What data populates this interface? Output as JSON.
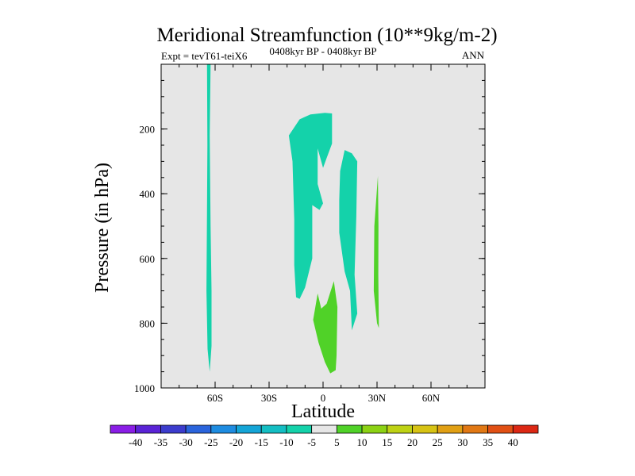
{
  "chart_data": {
    "type": "contour",
    "title": "Meridional Streamfunction (10**9kg/m-2)",
    "left_string": "Expt = tevT61-teiX6",
    "center_string": "0408kyr BP - 0408kyr BP",
    "right_string": "ANN",
    "xlabel": "Latitude",
    "ylabel": "Pressure (in hPa)",
    "xlim": [
      -90,
      90
    ],
    "ylim": [
      1000,
      0
    ],
    "x_ticks": [
      {
        "value": -60,
        "label": "60S"
      },
      {
        "value": -30,
        "label": "30S"
      },
      {
        "value": 0,
        "label": "0"
      },
      {
        "value": 30,
        "label": "30N"
      },
      {
        "value": 60,
        "label": "60N"
      }
    ],
    "y_ticks": [
      {
        "value": 200,
        "label": "200"
      },
      {
        "value": 400,
        "label": "400"
      },
      {
        "value": 600,
        "label": "600"
      },
      {
        "value": 800,
        "label": "800"
      },
      {
        "value": 1000,
        "label": "1000"
      }
    ],
    "background_color": "#e6e6e6",
    "colorbar": {
      "labels": [
        "-40",
        "-35",
        "-30",
        "-25",
        "-20",
        "-15",
        "-10",
        "-5",
        "5",
        "10",
        "15",
        "20",
        "25",
        "30",
        "35",
        "40"
      ],
      "colors": [
        "#8a1ee6",
        "#5a23d6",
        "#3c3ccd",
        "#2a64dc",
        "#1e8ce1",
        "#14a5d7",
        "#14bec3",
        "#14d2aa",
        "#e6e6e6",
        "#50d228",
        "#8cd214",
        "#bed214",
        "#d7c314",
        "#e1a014",
        "#e17814",
        "#e15014",
        "#dc2814"
      ]
    },
    "regions": [
      {
        "name": "southern-polar-column",
        "color": "#14d2aa",
        "points": [
          [
            -64.5,
            0
          ],
          [
            -62.5,
            0
          ],
          [
            -63,
            220
          ],
          [
            -62.5,
            500
          ],
          [
            -62,
            700
          ],
          [
            -62,
            870
          ],
          [
            -63,
            950
          ],
          [
            -64.2,
            880
          ],
          [
            -64.8,
            700
          ],
          [
            -64.5,
            450
          ],
          [
            -64.3,
            250
          ]
        ]
      },
      {
        "name": "tropical-south-cell",
        "color": "#14d2aa",
        "points": [
          [
            -19,
            220
          ],
          [
            -13,
            170
          ],
          [
            -7,
            155
          ],
          [
            1,
            150
          ],
          [
            5,
            152
          ],
          [
            5,
            245
          ],
          [
            2,
            290
          ],
          [
            0,
            320
          ],
          [
            -3,
            260
          ],
          [
            -3,
            370
          ],
          [
            0,
            430
          ],
          [
            -2,
            450
          ],
          [
            -6,
            435
          ],
          [
            -6,
            600
          ],
          [
            -10,
            690
          ],
          [
            -13,
            725
          ],
          [
            -15,
            720
          ],
          [
            -16,
            620
          ],
          [
            -16,
            480
          ],
          [
            -17,
            300
          ]
        ]
      },
      {
        "name": "tropical-north-cell",
        "color": "#14d2aa",
        "points": [
          [
            9.5,
            330
          ],
          [
            12,
            265
          ],
          [
            16,
            275
          ],
          [
            19,
            300
          ],
          [
            18.5,
            470
          ],
          [
            17.5,
            650
          ],
          [
            19,
            770
          ],
          [
            16,
            822
          ],
          [
            15,
            700
          ],
          [
            12,
            640
          ],
          [
            9,
            520
          ],
          [
            9,
            420
          ]
        ]
      },
      {
        "name": "northern-subtropical-positive",
        "color": "#50d228",
        "points": [
          [
            30.5,
            345
          ],
          [
            30.8,
            500
          ],
          [
            30.7,
            650
          ],
          [
            31,
            815
          ],
          [
            30,
            800
          ],
          [
            28.2,
            700
          ],
          [
            28.5,
            500
          ],
          [
            29.5,
            420
          ]
        ]
      },
      {
        "name": "equatorial-positive-cell",
        "color": "#50d228",
        "points": [
          [
            -5.5,
            790
          ],
          [
            -3,
            708
          ],
          [
            -1,
            755
          ],
          [
            2,
            740
          ],
          [
            6,
            670
          ],
          [
            8,
            750
          ],
          [
            7.5,
            900
          ],
          [
            7,
            945
          ],
          [
            4,
            955
          ],
          [
            1,
            920
          ],
          [
            -2.5,
            860
          ]
        ]
      }
    ]
  }
}
